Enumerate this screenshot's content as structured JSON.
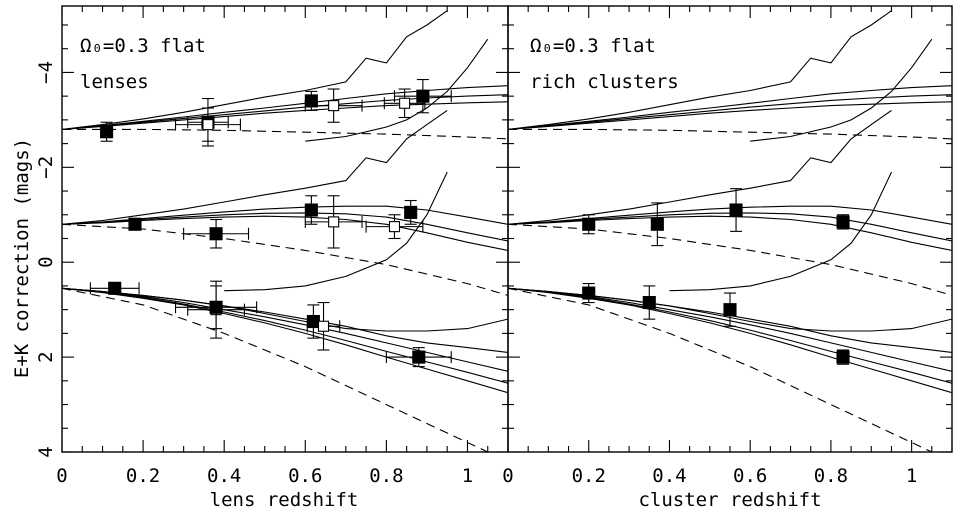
{
  "figure": {
    "ylabel": "E+K correction (mags)",
    "yticks": [
      "−4",
      "−2",
      "0",
      "2",
      "4"
    ],
    "xticks": [
      "0",
      "0.2",
      "0.4",
      "0.6",
      "0.8",
      "1"
    ]
  },
  "chart_data": [
    {
      "type": "line",
      "panel": "left",
      "annotation_line1": "Ω₀=0.3 flat",
      "annotation_line2": "lenses",
      "xlabel": "lens redshift",
      "ylabel": "E+K correction (mags)",
      "xlim": [
        0,
        1.1
      ],
      "ylim": [
        4,
        -5.4
      ],
      "y_axis_inverted": true,
      "note": "three groups of model tracks vertically offset from each other; solid = model tracks, dashed = no-evolution track",
      "models": [
        {
          "offset": -2.8,
          "solid": [
            {
              "x": [
                0,
                0.1,
                0.2,
                0.3,
                0.4,
                0.5,
                0.6,
                0.7,
                0.8,
                0.9,
                1.0,
                1.1
              ],
              "y": [
                -2.8,
                -2.86,
                -2.93,
                -3.0,
                -3.07,
                -3.14,
                -3.2,
                -3.25,
                -3.3,
                -3.33,
                -3.36,
                -3.38
              ]
            },
            {
              "x": [
                0,
                0.1,
                0.2,
                0.3,
                0.4,
                0.5,
                0.6,
                0.7,
                0.8,
                0.9,
                1.0,
                1.1
              ],
              "y": [
                -2.8,
                -2.87,
                -2.95,
                -3.03,
                -3.11,
                -3.19,
                -3.27,
                -3.34,
                -3.41,
                -3.46,
                -3.5,
                -3.53
              ]
            },
            {
              "x": [
                0,
                0.1,
                0.2,
                0.3,
                0.4,
                0.5,
                0.6,
                0.7,
                0.8,
                0.9,
                1.0,
                1.1
              ],
              "y": [
                -2.8,
                -2.88,
                -2.97,
                -3.06,
                -3.16,
                -3.25,
                -3.35,
                -3.45,
                -3.55,
                -3.62,
                -3.68,
                -3.72
              ]
            },
            {
              "x": [
                0,
                0.1,
                0.2,
                0.3,
                0.4,
                0.5,
                0.6,
                0.7,
                0.75,
                0.8,
                0.85,
                0.9,
                0.95
              ],
              "y": [
                -2.8,
                -2.9,
                -3.02,
                -3.16,
                -3.32,
                -3.48,
                -3.62,
                -3.8,
                -4.3,
                -4.2,
                -4.75,
                -5.0,
                -5.3
              ]
            },
            {
              "x": [
                0.6,
                0.7,
                0.8,
                0.85,
                0.9,
                0.95,
                1.0,
                1.05
              ],
              "y": [
                -2.55,
                -2.65,
                -2.85,
                -3.0,
                -3.25,
                -3.6,
                -4.1,
                -4.7
              ]
            }
          ],
          "dashed": {
            "x": [
              0,
              0.2,
              0.4,
              0.6,
              0.8,
              1.0,
              1.1
            ],
            "y": [
              -2.8,
              -2.8,
              -2.78,
              -2.74,
              -2.7,
              -2.64,
              -2.6
            ]
          }
        },
        {
          "offset": -0.8,
          "solid": [
            {
              "x": [
                0,
                0.1,
                0.2,
                0.3,
                0.4,
                0.5,
                0.6,
                0.7,
                0.8,
                0.9,
                1.0,
                1.1
              ],
              "y": [
                -0.8,
                -0.83,
                -0.88,
                -0.92,
                -0.95,
                -0.97,
                -0.95,
                -0.9,
                -0.8,
                -0.62,
                -0.42,
                -0.25
              ]
            },
            {
              "x": [
                0,
                0.1,
                0.2,
                0.3,
                0.4,
                0.5,
                0.6,
                0.7,
                0.8,
                0.9,
                1.0,
                1.1
              ],
              "y": [
                -0.8,
                -0.84,
                -0.9,
                -0.95,
                -1.0,
                -1.03,
                -1.04,
                -1.02,
                -0.95,
                -0.8,
                -0.62,
                -0.45
              ]
            },
            {
              "x": [
                0,
                0.1,
                0.2,
                0.3,
                0.4,
                0.5,
                0.6,
                0.7,
                0.8,
                0.9,
                1.0,
                1.1
              ],
              "y": [
                -0.8,
                -0.85,
                -0.92,
                -0.99,
                -1.06,
                -1.12,
                -1.16,
                -1.18,
                -1.18,
                -1.1,
                -0.95,
                -0.8
              ]
            },
            {
              "x": [
                0,
                0.1,
                0.2,
                0.3,
                0.4,
                0.5,
                0.6,
                0.7,
                0.75,
                0.8,
                0.85,
                0.9,
                0.95
              ],
              "y": [
                -0.8,
                -0.88,
                -1.0,
                -1.12,
                -1.27,
                -1.42,
                -1.56,
                -1.72,
                -2.2,
                -2.1,
                -2.6,
                -2.9,
                -3.2
              ]
            },
            {
              "x": [
                0.4,
                0.5,
                0.6,
                0.7,
                0.8,
                0.85,
                0.9,
                0.95
              ],
              "y": [
                0.6,
                0.58,
                0.5,
                0.3,
                -0.05,
                -0.4,
                -1.0,
                -1.9
              ]
            }
          ],
          "dashed": {
            "x": [
              0,
              0.2,
              0.4,
              0.6,
              0.8,
              1.0,
              1.1
            ],
            "y": [
              -0.8,
              -0.7,
              -0.5,
              -0.25,
              0.05,
              0.45,
              0.7
            ]
          }
        },
        {
          "offset": 0.55,
          "solid": [
            {
              "x": [
                0,
                0.1,
                0.2,
                0.3,
                0.4,
                0.5,
                0.6,
                0.7,
                0.8,
                0.9,
                1.0,
                1.1
              ],
              "y": [
                0.55,
                0.62,
                0.72,
                0.85,
                1.0,
                1.15,
                1.32,
                1.5,
                1.7,
                1.9,
                2.1,
                2.3
              ]
            },
            {
              "x": [
                0,
                0.1,
                0.2,
                0.3,
                0.4,
                0.5,
                0.6,
                0.7,
                0.8,
                0.9,
                1.0,
                1.1
              ],
              "y": [
                0.55,
                0.63,
                0.74,
                0.88,
                1.05,
                1.23,
                1.43,
                1.65,
                1.88,
                2.1,
                2.32,
                2.55
              ]
            },
            {
              "x": [
                0,
                0.1,
                0.2,
                0.3,
                0.4,
                0.5,
                0.6,
                0.7,
                0.8,
                0.9,
                1.0,
                1.1
              ],
              "y": [
                0.55,
                0.64,
                0.76,
                0.9,
                1.08,
                1.28,
                1.5,
                1.74,
                2.0,
                2.25,
                2.5,
                2.75
              ]
            },
            {
              "x": [
                0,
                0.1,
                0.2,
                0.3,
                0.4,
                0.5,
                0.6,
                0.7,
                0.8,
                0.9,
                1.0,
                1.1
              ],
              "y": [
                0.55,
                0.62,
                0.7,
                0.8,
                0.92,
                1.05,
                1.2,
                1.35,
                1.55,
                1.7,
                1.8,
                1.9
              ]
            },
            {
              "x": [
                0,
                0.1,
                0.2,
                0.3,
                0.4,
                0.5,
                0.6,
                0.7,
                0.8,
                0.9,
                1.0,
                1.1
              ],
              "y": [
                0.55,
                0.62,
                0.7,
                0.8,
                0.92,
                1.08,
                1.25,
                1.4,
                1.45,
                1.45,
                1.4,
                1.2
              ]
            }
          ],
          "dashed": {
            "x": [
              0,
              0.2,
              0.4,
              0.6,
              0.8,
              1.0,
              1.1
            ],
            "y": [
              0.55,
              0.9,
              1.5,
              2.2,
              3.0,
              3.8,
              4.2
            ]
          }
        }
      ],
      "points": [
        {
          "x": 0.11,
          "y": -2.75,
          "yerr": 0.2,
          "xerr": 0,
          "filled": true
        },
        {
          "x": 0.36,
          "y": -2.95,
          "yerr": 0.5,
          "xerr": 0.05,
          "filled": true
        },
        {
          "x": 0.36,
          "y": -2.9,
          "yerr": 0.35,
          "xerr": 0.08,
          "filled": false
        },
        {
          "x": 0.615,
          "y": -3.4,
          "yerr": 0.2,
          "xerr": 0,
          "filled": true
        },
        {
          "x": 0.67,
          "y": -3.3,
          "yerr": 0.35,
          "xerr": 0.07,
          "filled": false
        },
        {
          "x": 0.845,
          "y": -3.35,
          "yerr": 0.3,
          "xerr": 0.05,
          "filled": false
        },
        {
          "x": 0.89,
          "y": -3.5,
          "yerr": 0.35,
          "xerr": 0.07,
          "filled": true
        },
        {
          "x": 0.18,
          "y": -0.8,
          "yerr": 0.1,
          "xerr": 0,
          "filled": true
        },
        {
          "x": 0.38,
          "y": -0.6,
          "yerr": 0.3,
          "xerr": 0.08,
          "filled": true
        },
        {
          "x": 0.615,
          "y": -1.1,
          "yerr": 0.3,
          "xerr": 0,
          "filled": true
        },
        {
          "x": 0.67,
          "y": -0.85,
          "yerr": 0.55,
          "xerr": 0.07,
          "filled": false
        },
        {
          "x": 0.82,
          "y": -0.75,
          "yerr": 0.25,
          "xerr": 0.07,
          "filled": false
        },
        {
          "x": 0.86,
          "y": -1.05,
          "yerr": 0.25,
          "xerr": 0,
          "filled": true
        },
        {
          "x": 0.13,
          "y": 0.55,
          "yerr": 0.1,
          "xerr": 0.06,
          "filled": true
        },
        {
          "x": 0.38,
          "y": 1.0,
          "yerr": 0.6,
          "xerr": 0.07,
          "filled": false
        },
        {
          "x": 0.38,
          "y": 0.95,
          "yerr": 0.45,
          "xerr": 0.1,
          "filled": true
        },
        {
          "x": 0.62,
          "y": 1.25,
          "yerr": 0.35,
          "xerr": 0,
          "filled": true
        },
        {
          "x": 0.645,
          "y": 1.35,
          "yerr": 0.5,
          "xerr": 0.04,
          "filled": false
        },
        {
          "x": 0.88,
          "y": 2.0,
          "yerr": 0.2,
          "xerr": 0.08,
          "filled": true
        }
      ]
    },
    {
      "type": "line",
      "panel": "right",
      "annotation_line1": "Ω₀=0.3 flat",
      "annotation_line2": "rich clusters",
      "xlabel": "cluster redshift",
      "xlim": [
        0,
        1.1
      ],
      "ylim": [
        4,
        -5.4
      ],
      "y_axis_inverted": true,
      "points": [
        {
          "x": 0.2,
          "y": -0.8,
          "yerr": 0.2,
          "xerr": 0,
          "filled": true
        },
        {
          "x": 0.37,
          "y": -0.8,
          "yerr": 0.45,
          "xerr": 0,
          "filled": true
        },
        {
          "x": 0.565,
          "y": -1.1,
          "yerr": 0.45,
          "xerr": 0,
          "filled": true
        },
        {
          "x": 0.83,
          "y": -0.85,
          "yerr": 0.15,
          "xerr": 0,
          "filled": true
        },
        {
          "x": 0.2,
          "y": 0.65,
          "yerr": 0.2,
          "xerr": 0,
          "filled": true
        },
        {
          "x": 0.35,
          "y": 0.85,
          "yerr": 0.35,
          "xerr": 0,
          "filled": true
        },
        {
          "x": 0.55,
          "y": 1.0,
          "yerr": 0.35,
          "xerr": 0,
          "filled": true
        },
        {
          "x": 0.83,
          "y": 2.0,
          "yerr": 0.15,
          "xerr": 0,
          "filled": true
        }
      ]
    }
  ]
}
